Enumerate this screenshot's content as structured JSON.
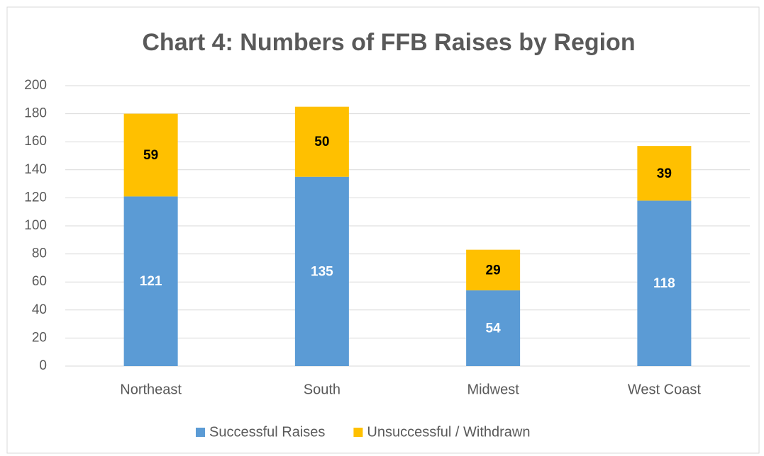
{
  "chart_data": {
    "type": "stacked_bar",
    "title": "Chart 4:  Numbers of FFB Raises by Region",
    "categories": [
      "Northeast",
      "South",
      "Midwest",
      "West Coast"
    ],
    "series": [
      {
        "name": "Successful Raises",
        "color": "#5b9bd5",
        "label_color": "#ffffff",
        "values": [
          121,
          135,
          54,
          118
        ]
      },
      {
        "name": "Unsuccessful / Withdrawn",
        "color": "#ffc000",
        "label_color": "#000000",
        "values": [
          59,
          50,
          29,
          39
        ]
      }
    ],
    "ylim": [
      0,
      200
    ],
    "yticks": [
      0,
      20,
      40,
      60,
      80,
      100,
      120,
      140,
      160,
      180,
      200
    ],
    "grid": true,
    "legend": "bottom"
  }
}
